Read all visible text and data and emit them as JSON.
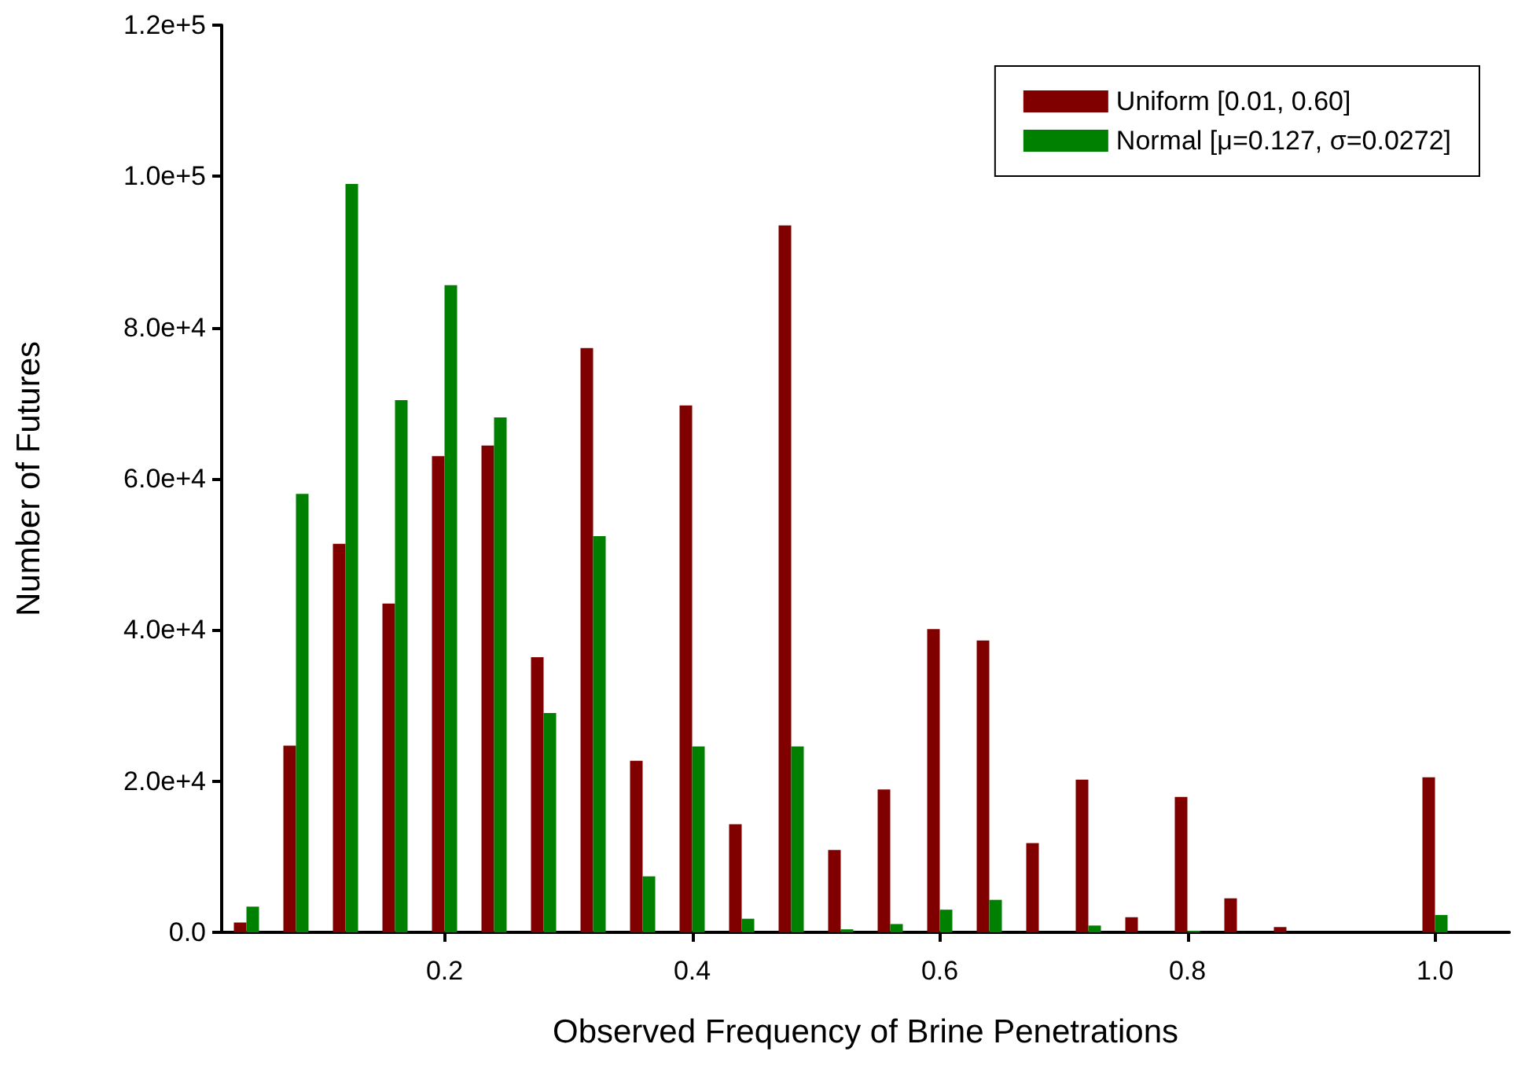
{
  "chart_data": {
    "type": "bar",
    "xlabel": "Observed Frequency of Brine Penetrations",
    "ylabel": "Number of Futures",
    "x": [
      0.04,
      0.08,
      0.12,
      0.16,
      0.2,
      0.24,
      0.28,
      0.32,
      0.36,
      0.4,
      0.44,
      0.48,
      0.52,
      0.56,
      0.6,
      0.64,
      0.68,
      0.72,
      0.76,
      0.8,
      0.84,
      0.88,
      0.92,
      0.96,
      1.0
    ],
    "series": [
      {
        "name": "Uniform [0.01, 0.60]",
        "color": "#800000",
        "values": [
          1300,
          24700,
          51400,
          43500,
          63000,
          64400,
          36400,
          77300,
          22700,
          69700,
          14300,
          93500,
          10900,
          18900,
          40100,
          38600,
          11800,
          20200,
          2000,
          17900,
          4500,
          700,
          0,
          0,
          20500
        ]
      },
      {
        "name": "Normal [μ=0.127, σ=0.0272]",
        "color": "#008000",
        "values": [
          3400,
          58000,
          99000,
          70400,
          85600,
          68100,
          29000,
          52400,
          7400,
          24600,
          1800,
          24600,
          400,
          1100,
          3000,
          4300,
          0,
          900,
          0,
          200,
          0,
          0,
          0,
          0,
          2300
        ]
      }
    ],
    "xlim": [
      0.02,
      1.06
    ],
    "xticks": [
      0.2,
      0.4,
      0.6,
      0.8,
      {
        "value": 1,
        "label": "1.0"
      }
    ],
    "ylim": [
      0,
      120000
    ],
    "yticks": [
      {
        "value": 0,
        "label": "0.0"
      },
      {
        "value": 20000,
        "label": "2.0e+4"
      },
      {
        "value": 40000,
        "label": "4.0e+4"
      },
      {
        "value": 60000,
        "label": "6.0e+4"
      },
      {
        "value": 80000,
        "label": "8.0e+4"
      },
      {
        "value": 100000,
        "label": "1.0e+5"
      },
      {
        "value": 120000,
        "label": "1.2e+5"
      }
    ],
    "grid": false,
    "legend": "top right"
  }
}
